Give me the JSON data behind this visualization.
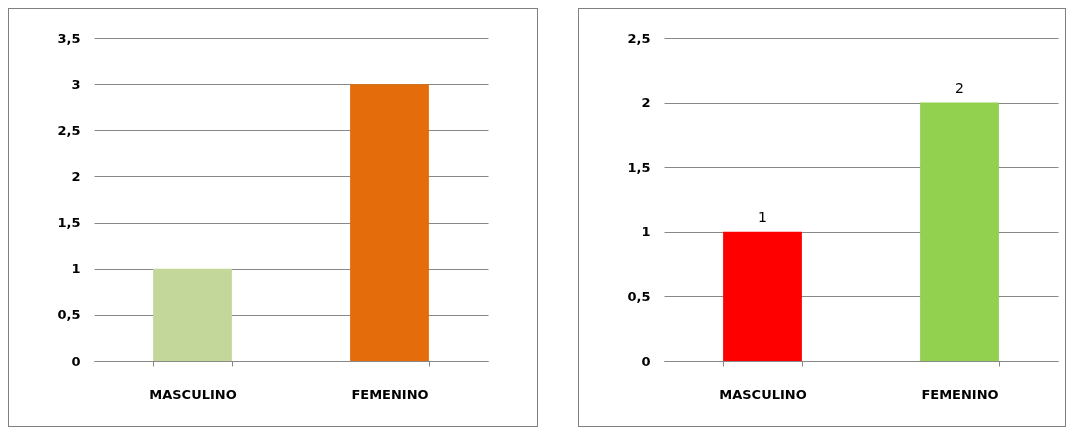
{
  "chart_data": [
    {
      "type": "bar",
      "categories": [
        "MASCULINO",
        "FEMENINO"
      ],
      "colors": [
        "#c4d79b",
        "#e46c0a"
      ],
      "values": [
        1,
        3
      ],
      "ylim": [
        0,
        3.5
      ],
      "yticks": [
        0,
        {
          "value": 0.5,
          "label": "0,5"
        },
        1,
        {
          "value": 1.5,
          "label": "1,5"
        },
        2,
        {
          "value": 2.5,
          "label": "2,5"
        },
        3,
        {
          "value": 3.5,
          "label": "3,5"
        }
      ],
      "grid": "y"
    },
    {
      "type": "bar",
      "categories": [
        "MASCULINO",
        "FEMENINO"
      ],
      "colors": [
        "#ff0000",
        "#92d050"
      ],
      "values": [
        1,
        2
      ],
      "ylim": [
        0,
        2.5
      ],
      "yticks": [
        0,
        {
          "value": 0.5,
          "label": "0,5"
        },
        1,
        {
          "value": 1.5,
          "label": "1,5"
        },
        2,
        {
          "value": 2.5,
          "label": "2,5"
        }
      ],
      "grid": "y",
      "data_labels": true
    }
  ]
}
